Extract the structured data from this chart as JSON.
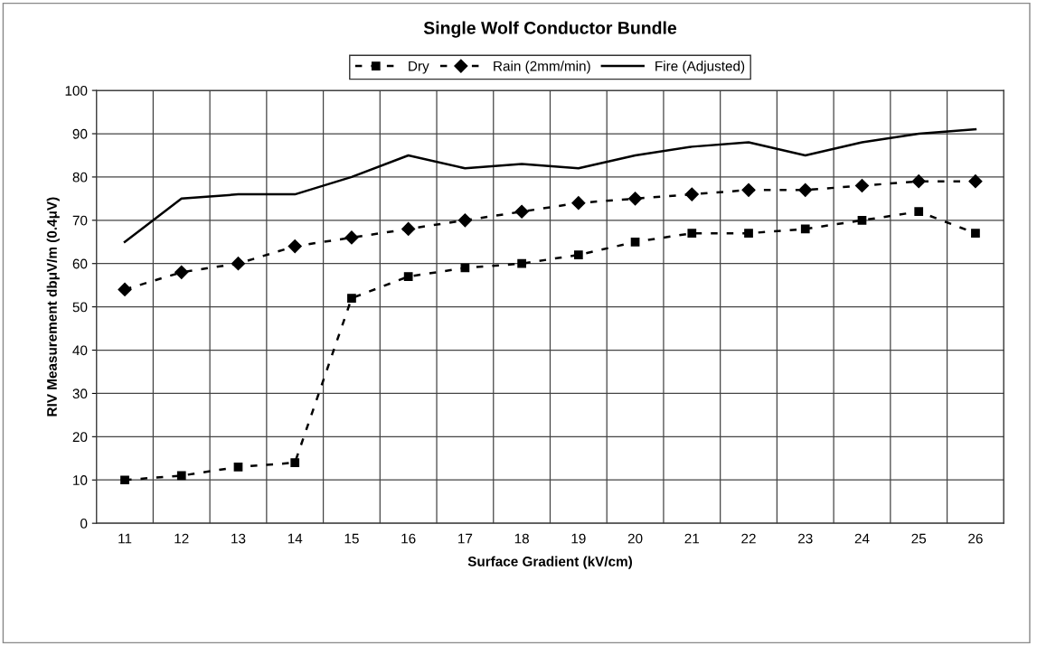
{
  "chart_data": {
    "type": "line",
    "title": "Single Wolf Conductor Bundle",
    "xlabel": "Surface Gradient (kV/cm)",
    "ylabel": "RIV Measurement dbμV/m (0.4μV)",
    "categories": [
      "11",
      "12",
      "13",
      "14",
      "15",
      "16",
      "17",
      "18",
      "19",
      "20",
      "21",
      "22",
      "23",
      "24",
      "25",
      "26"
    ],
    "series": [
      {
        "name": "Dry",
        "color": "#000000",
        "marker": "square",
        "line_style": "dashed",
        "values": [
          10,
          11,
          13,
          14,
          52,
          57,
          59,
          60,
          62,
          65,
          67,
          67,
          68,
          70,
          72,
          67
        ]
      },
      {
        "name": "Rain (2mm/min)",
        "color": "#000000",
        "marker": "diamond",
        "line_style": "dashed",
        "values": [
          54,
          58,
          60,
          64,
          66,
          68,
          70,
          72,
          74,
          75,
          76,
          77,
          77,
          78,
          79,
          79
        ]
      },
      {
        "name": "Fire (Adjusted)",
        "color": "#000000",
        "marker": "none",
        "line_style": "solid",
        "values": [
          65,
          75,
          76,
          76,
          80,
          85,
          82,
          83,
          82,
          85,
          87,
          88,
          85,
          88,
          90,
          91
        ]
      }
    ],
    "ylim": [
      0,
      100
    ],
    "yticks": [
      0,
      10,
      20,
      30,
      40,
      50,
      60,
      70,
      80,
      90,
      100
    ],
    "grid": true,
    "legend": "top"
  }
}
